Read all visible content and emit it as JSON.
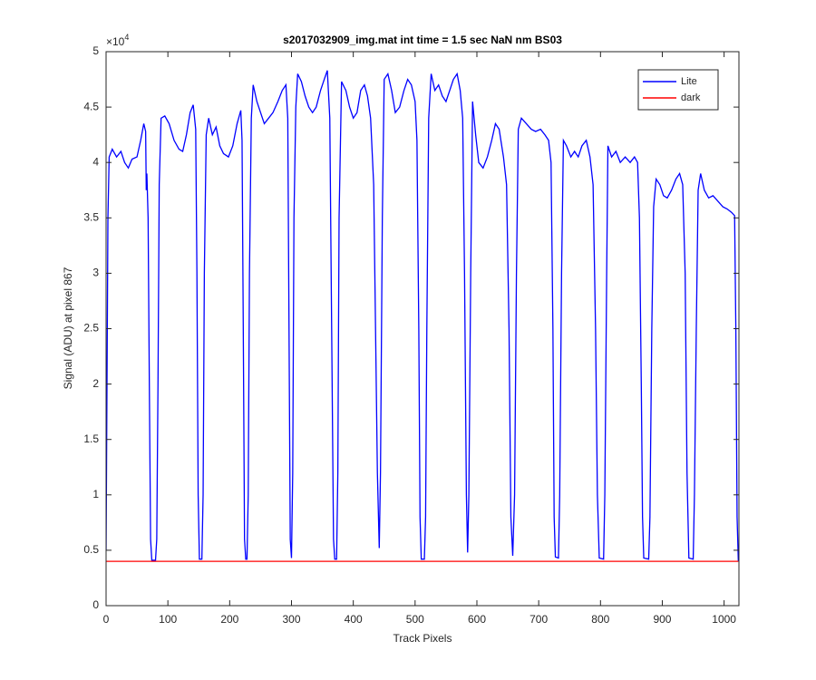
{
  "chart_data": {
    "type": "line",
    "title": "s2017032909_img.mat int time = 1.5 sec  NaN nm BS03",
    "x_label": "Track Pixels",
    "y_label": "Signal (ADU) at pixel 867",
    "y_exponent": {
      "base": "×10",
      "power": "4"
    },
    "xlim": [
      0,
      1024
    ],
    "ylim": [
      0,
      50000
    ],
    "xticks": [
      0,
      100,
      200,
      300,
      400,
      500,
      600,
      700,
      800,
      900,
      1000
    ],
    "yticks": [
      0,
      {
        "value": 5000,
        "label": "0.5"
      },
      {
        "value": 10000,
        "label": "1"
      },
      {
        "value": 15000,
        "label": "1.5"
      },
      {
        "value": 20000,
        "label": "2"
      },
      {
        "value": 25000,
        "label": "2.5"
      },
      {
        "value": 30000,
        "label": "3"
      },
      {
        "value": 35000,
        "label": "3.5"
      },
      {
        "value": 40000,
        "label": "4"
      },
      {
        "value": 45000,
        "label": "4.5"
      },
      {
        "value": 50000,
        "label": "5"
      }
    ],
    "grid": false,
    "legend_position": "upper-right",
    "series": [
      {
        "name": "Lite",
        "color": "#0000ff",
        "x": [
          0,
          3,
          5,
          10,
          17,
          24,
          30,
          36,
          42,
          50,
          56,
          61,
          64,
          65,
          66,
          68,
          70,
          72,
          74,
          80,
          82,
          84,
          86,
          89,
          95,
          102,
          110,
          118,
          124,
          130,
          136,
          141,
          145,
          147,
          149,
          151,
          155,
          157,
          159,
          162,
          166,
          172,
          178,
          184,
          190,
          198,
          205,
          212,
          218,
          220,
          222,
          224,
          226,
          228,
          230,
          232,
          235,
          238,
          244,
          250,
          256,
          263,
          270,
          278,
          285,
          291,
          294,
          296,
          298,
          300,
          302,
          304,
          307,
          310,
          316,
          322,
          328,
          334,
          340,
          347,
          353,
          358,
          362,
          365,
          368,
          370,
          373,
          375,
          377,
          381,
          388,
          394,
          400,
          406,
          412,
          418,
          423,
          428,
          433,
          436,
          439,
          442,
          444,
          447,
          450,
          456,
          462,
          468,
          475,
          482,
          488,
          494,
          500,
          503,
          506,
          508,
          510,
          515,
          517,
          519,
          522,
          526,
          532,
          538,
          544,
          550,
          556,
          562,
          568,
          573,
          577,
          580,
          583,
          585,
          587,
          590,
          593,
          598,
          603,
          610,
          617,
          624,
          630,
          636,
          643,
          648,
          652,
          655,
          658,
          661,
          664,
          667,
          672,
          680,
          688,
          695,
          703,
          710,
          716,
          720,
          723,
          725,
          727,
          732,
          734,
          737,
          740,
          745,
          752,
          758,
          764,
          770,
          777,
          783,
          788,
          792,
          795,
          798,
          805,
          807,
          810,
          812,
          818,
          825,
          832,
          840,
          848,
          855,
          860,
          863,
          866,
          868,
          870,
          878,
          880,
          883,
          886,
          890,
          896,
          902,
          908,
          915,
          922,
          928,
          933,
          937,
          940,
          943,
          950,
          952,
          955,
          958,
          962,
          968,
          975,
          982,
          990,
          998,
          1005,
          1012,
          1017,
          1019,
          1021,
          1023
        ],
        "values": [
          5000,
          35000,
          40500,
          41200,
          40500,
          41000,
          40000,
          39500,
          40300,
          40500,
          42000,
          43500,
          42800,
          37500,
          39000,
          35000,
          20000,
          6000,
          4100,
          4100,
          6000,
          20000,
          38000,
          44000,
          44200,
          43500,
          42000,
          41200,
          41000,
          42500,
          44500,
          45200,
          43000,
          30000,
          10000,
          4200,
          4200,
          10000,
          30000,
          42500,
          44000,
          42500,
          43200,
          41500,
          40800,
          40500,
          41500,
          43500,
          44700,
          42000,
          25000,
          6000,
          4200,
          4200,
          10000,
          30000,
          44000,
          47000,
          45500,
          44500,
          43500,
          44000,
          44500,
          45500,
          46500,
          47000,
          44000,
          25000,
          6000,
          4300,
          12000,
          35000,
          45000,
          48000,
          47300,
          46000,
          45000,
          44500,
          45000,
          46500,
          47500,
          48300,
          44000,
          25000,
          6000,
          4200,
          4200,
          12000,
          35000,
          47300,
          46500,
          45000,
          44000,
          44500,
          46500,
          47000,
          46000,
          44000,
          38000,
          25000,
          12000,
          5200,
          12000,
          35000,
          47500,
          48000,
          46500,
          44500,
          45000,
          46500,
          47500,
          47000,
          45500,
          42000,
          25000,
          8000,
          4200,
          4200,
          8000,
          25000,
          44000,
          48000,
          46500,
          47000,
          46000,
          45500,
          46500,
          47500,
          48000,
          46500,
          44000,
          30000,
          10000,
          4800,
          10000,
          30000,
          45500,
          42500,
          40000,
          39500,
          40500,
          42000,
          43500,
          43000,
          40500,
          38000,
          25000,
          8000,
          4500,
          10000,
          30000,
          43000,
          44000,
          43500,
          43000,
          42800,
          43000,
          42500,
          42000,
          40000,
          25000,
          8000,
          4400,
          4300,
          10000,
          30000,
          42000,
          41500,
          40500,
          41000,
          40500,
          41500,
          42000,
          40500,
          38000,
          25000,
          10000,
          4300,
          4200,
          10000,
          30000,
          41500,
          40500,
          41000,
          40000,
          40500,
          40000,
          40500,
          40000,
          35000,
          20000,
          8000,
          4300,
          4200,
          8000,
          25000,
          36000,
          38500,
          38000,
          37000,
          36800,
          37500,
          38500,
          39000,
          38000,
          30000,
          12000,
          4300,
          4200,
          10000,
          25000,
          37500,
          39000,
          37500,
          36800,
          37000,
          36500,
          36000,
          35800,
          35500,
          35200,
          25000,
          8000,
          4000
        ]
      },
      {
        "name": "dark",
        "color": "#ff0000",
        "x": [
          0,
          1023
        ],
        "values": [
          4000,
          4000
        ]
      }
    ]
  }
}
